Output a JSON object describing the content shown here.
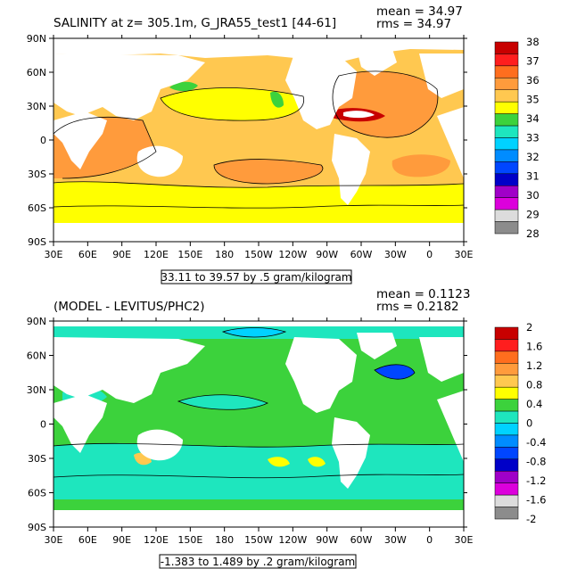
{
  "panels": [
    {
      "title": "SALINITY at z= 305.1m, G_JRA55_test1 [44-61]",
      "mean_text": "mean = 34.97",
      "rms_text": "rms = 34.97",
      "range_text": "33.11 to 39.57 by .5 gram/kilogram"
    },
    {
      "title": "(MODEL - LEVITUS/PHC2)",
      "mean_text": "mean = 0.1123",
      "rms_text": "rms = 0.2182",
      "range_text": "-1.383 to 1.489 by .2 gram/kilogram"
    }
  ],
  "chart_data": [
    {
      "type": "heatmap",
      "title": "SALINITY at z= 305.1m, G_JRA55_test1 [44-61]",
      "xlabel": "",
      "ylabel": "",
      "x_ticks": [
        "30E",
        "60E",
        "90E",
        "120E",
        "150E",
        "180",
        "150W",
        "120W",
        "90W",
        "60W",
        "30W",
        "0",
        "30E"
      ],
      "y_ticks": [
        "90N",
        "60N",
        "30N",
        "0",
        "30S",
        "60S",
        "90S"
      ],
      "colorbar": {
        "labels": [
          "38",
          "37",
          "36",
          "35",
          "34",
          "33",
          "32",
          "31",
          "30",
          "29",
          "28"
        ],
        "colors": [
          "#c80000",
          "#ff1e1e",
          "#ff6e1e",
          "#ff9b3c",
          "#ffc850",
          "#ffff00",
          "#3cd23c",
          "#1ee6be",
          "#00d2ff",
          "#008cff",
          "#0046ff",
          "#0000c8",
          "#a000c8",
          "#dc00dc",
          "#dcdcdc",
          "#8c8c8c"
        ]
      },
      "mean": 34.97,
      "rms": 34.97,
      "contour_range": {
        "min": 33.11,
        "max": 39.57,
        "interval": 0.5,
        "units": "gram/kilogram"
      }
    },
    {
      "type": "heatmap",
      "title": "(MODEL - LEVITUS/PHC2)",
      "xlabel": "",
      "ylabel": "",
      "x_ticks": [
        "30E",
        "60E",
        "90E",
        "120E",
        "150E",
        "180",
        "150W",
        "120W",
        "90W",
        "60W",
        "30W",
        "0",
        "30E"
      ],
      "y_ticks": [
        "90N",
        "60N",
        "30N",
        "0",
        "30S",
        "60S",
        "90S"
      ],
      "colorbar": {
        "labels": [
          "2",
          "1.6",
          "1.2",
          "0.8",
          "0.4",
          "0",
          "-0.4",
          "-0.8",
          "-1.2",
          "-1.6",
          "-2"
        ],
        "colors": [
          "#c80000",
          "#ff1e1e",
          "#ff6e1e",
          "#ff9b3c",
          "#ffc850",
          "#ffff00",
          "#3cd23c",
          "#1ee6be",
          "#00d2ff",
          "#008cff",
          "#0046ff",
          "#0000c8",
          "#a000c8",
          "#dc00dc",
          "#dcdcdc",
          "#8c8c8c"
        ]
      },
      "mean": 0.1123,
      "rms": 0.2182,
      "contour_range": {
        "min": -1.383,
        "max": 1.489,
        "interval": 0.2,
        "units": "gram/kilogram"
      }
    }
  ]
}
